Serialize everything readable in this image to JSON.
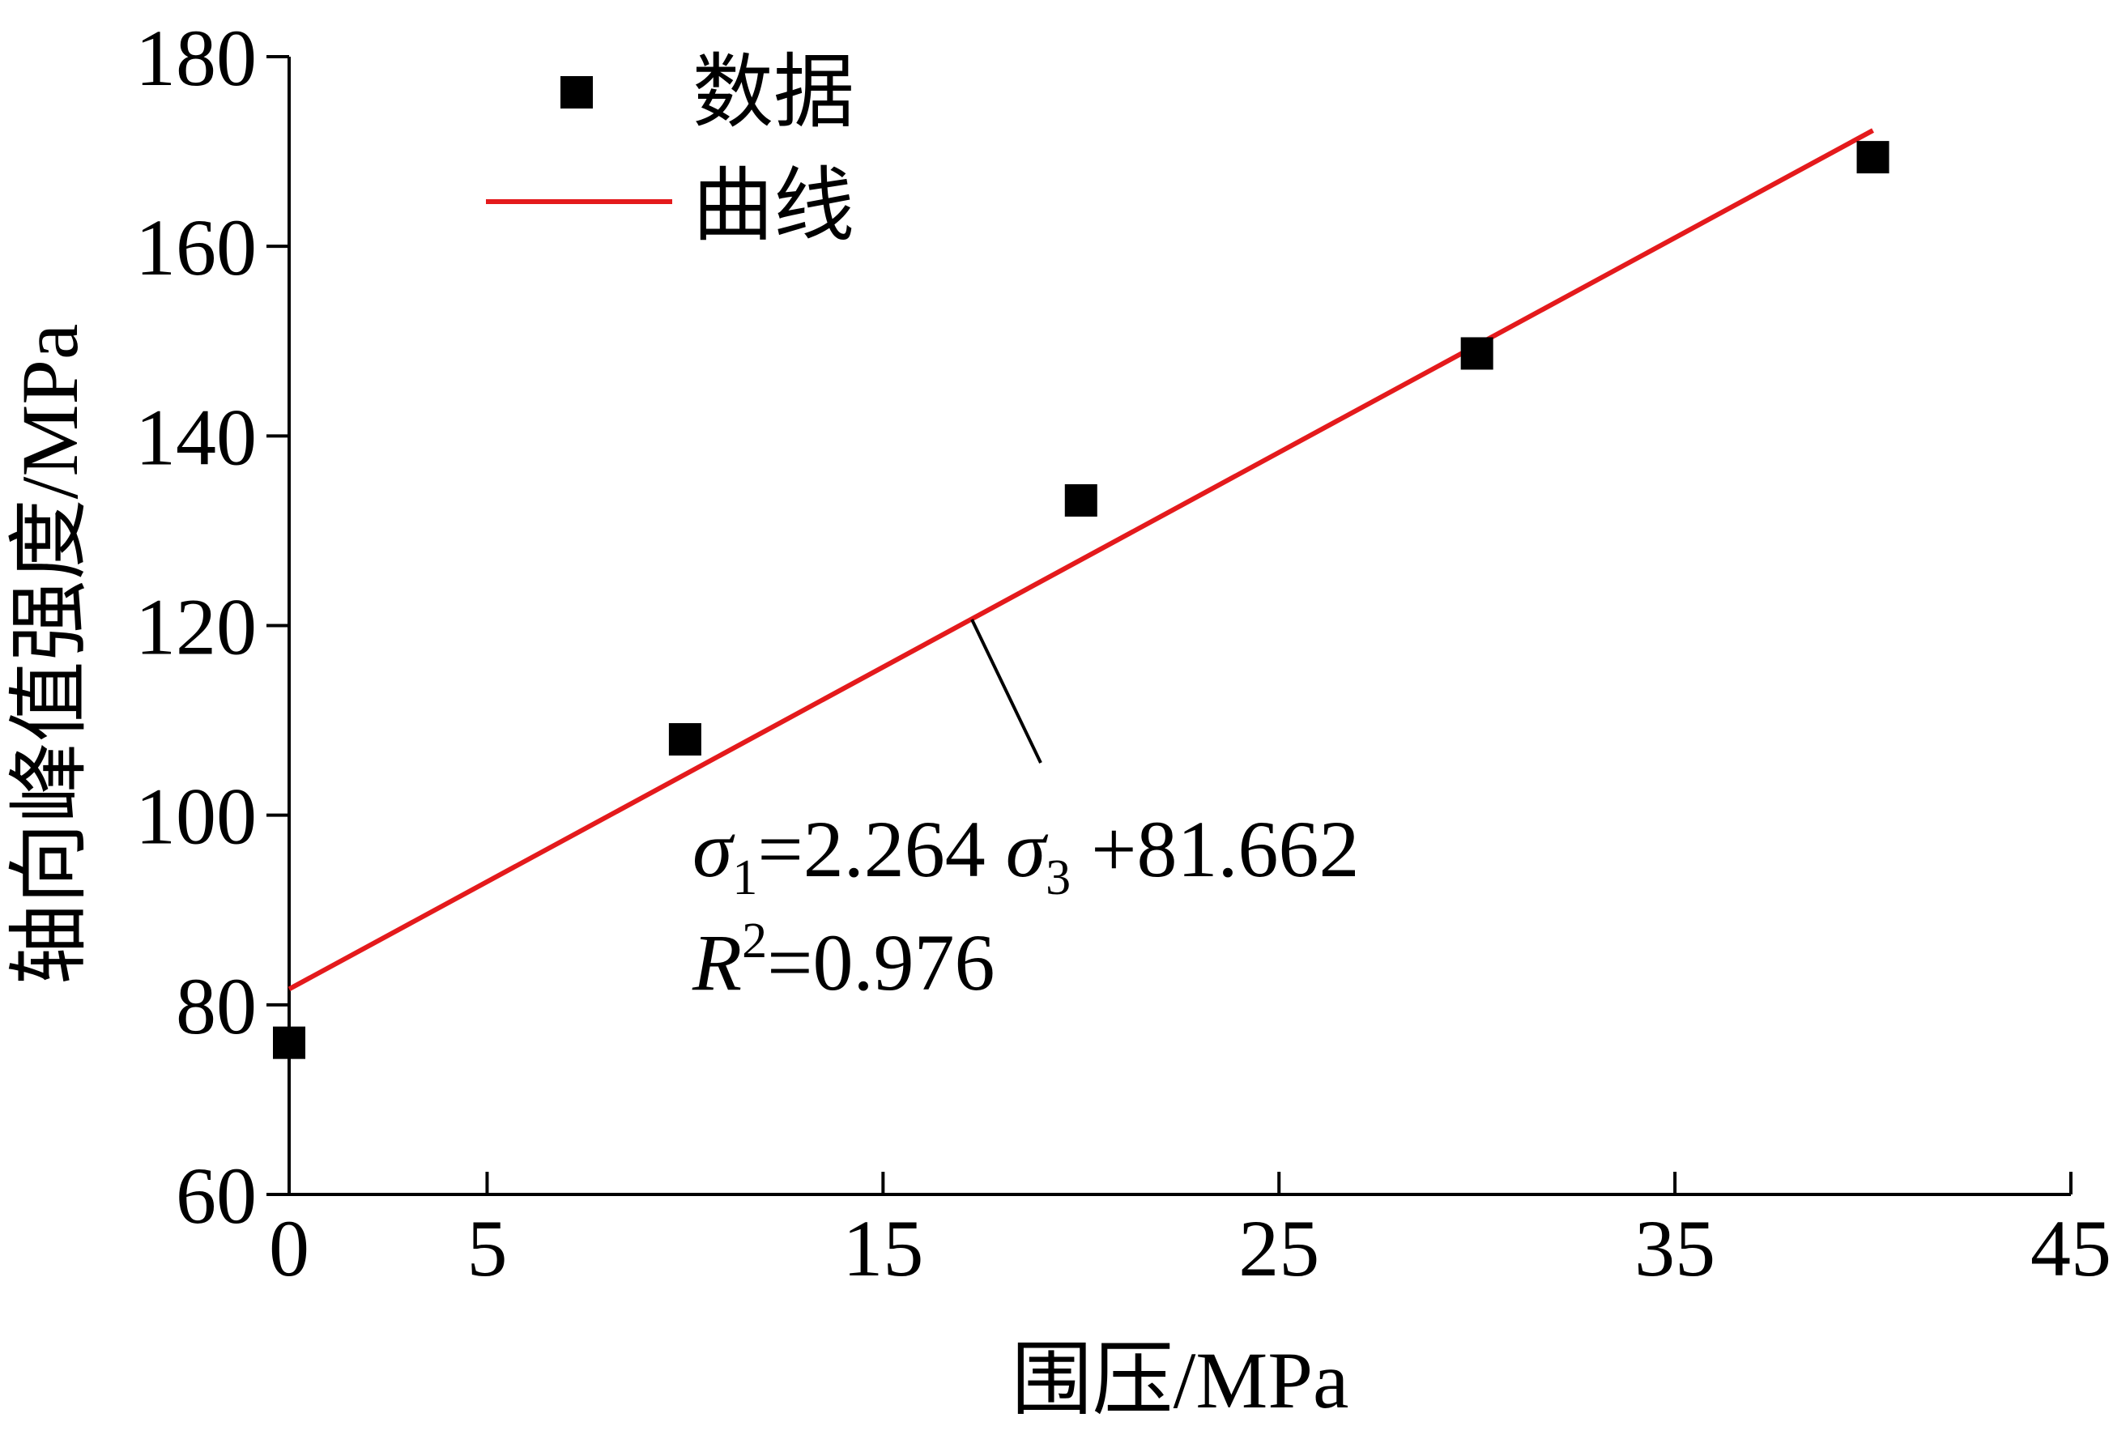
{
  "chart_data": {
    "type": "scatter",
    "xlabel": "围压/MPa",
    "ylabel": "轴向峰值强度/MPa",
    "xlim": [
      0,
      45
    ],
    "ylim": [
      60,
      180
    ],
    "xticks": [
      0,
      5,
      15,
      25,
      35,
      45
    ],
    "yticks": [
      60,
      80,
      100,
      120,
      140,
      160,
      180
    ],
    "grid": false,
    "legend_position": "top-left",
    "series": [
      {
        "name": "数据",
        "kind": "scatter",
        "marker": "square",
        "color": "#000000",
        "x": [
          0,
          10,
          20,
          30,
          40
        ],
        "y": [
          76.0,
          108.0,
          133.2,
          148.7,
          169.4
        ]
      },
      {
        "name": "曲线",
        "kind": "line",
        "color": "#e41a1c",
        "x": [
          0,
          40
        ],
        "y": [
          81.662,
          172.222
        ]
      }
    ],
    "annotations": {
      "equation": {
        "sigma": "σ",
        "sub1": "1",
        "eq_mid": "=2.264 ",
        "sub3": "3",
        "eq_end": " +81.662"
      },
      "r2": {
        "r": "R",
        "sup": "2",
        "value": "=0.976"
      }
    }
  }
}
